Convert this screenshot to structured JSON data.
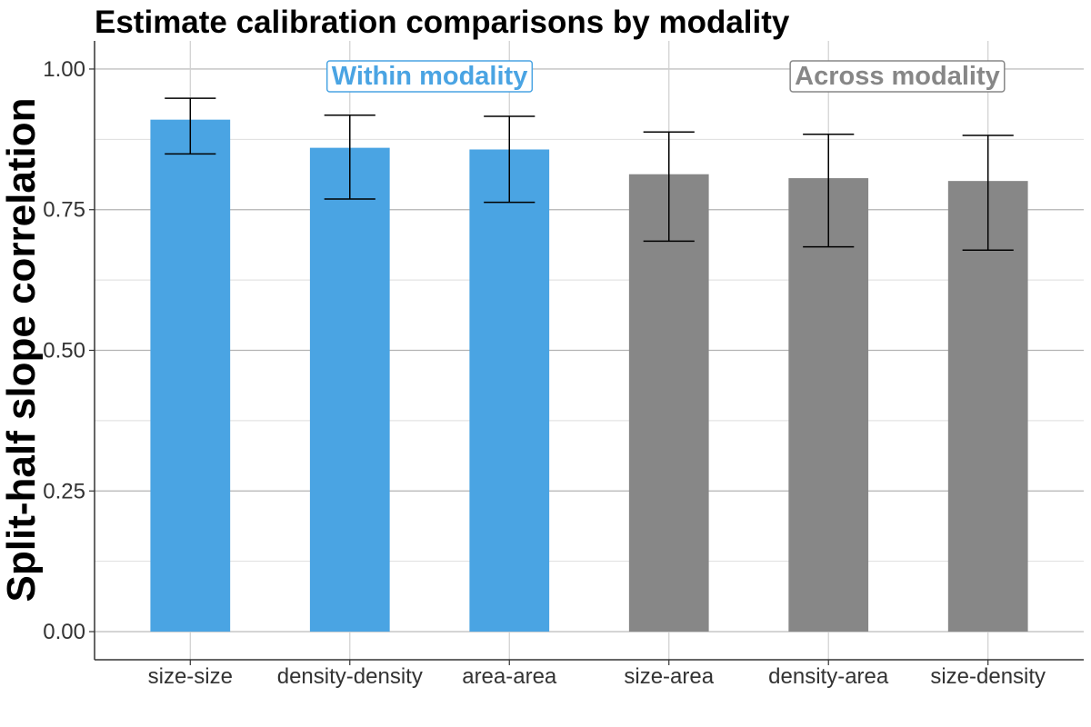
{
  "chart_data": {
    "type": "bar",
    "title": "Estimate calibration comparisons by modality",
    "xlabel": "",
    "ylabel": "Split-half slope correlation",
    "ylim": [
      -0.05,
      1.05
    ],
    "yticks": [
      0.0,
      0.25,
      0.5,
      0.75,
      1.0
    ],
    "ytick_labels": [
      "0.00",
      "0.25",
      "0.50",
      "0.75",
      "1.00"
    ],
    "grid": true,
    "categories": [
      "size-size",
      "density-density",
      "area-area",
      "size-area",
      "density-area",
      "size-density"
    ],
    "values": [
      0.91,
      0.86,
      0.857,
      0.813,
      0.806,
      0.801
    ],
    "error_low": [
      0.849,
      0.769,
      0.763,
      0.694,
      0.684,
      0.678
    ],
    "error_high": [
      0.948,
      0.918,
      0.916,
      0.888,
      0.884,
      0.882
    ],
    "groups": [
      {
        "name": "Within modality",
        "categories": [
          "size-size",
          "density-density",
          "area-area"
        ],
        "color": "#4AA4E3"
      },
      {
        "name": "Across modality",
        "categories": [
          "size-area",
          "density-area",
          "size-density"
        ],
        "color": "#878787"
      }
    ],
    "bar_colors": [
      "#4AA4E3",
      "#4AA4E3",
      "#4AA4E3",
      "#878787",
      "#878787",
      "#878787"
    ]
  }
}
